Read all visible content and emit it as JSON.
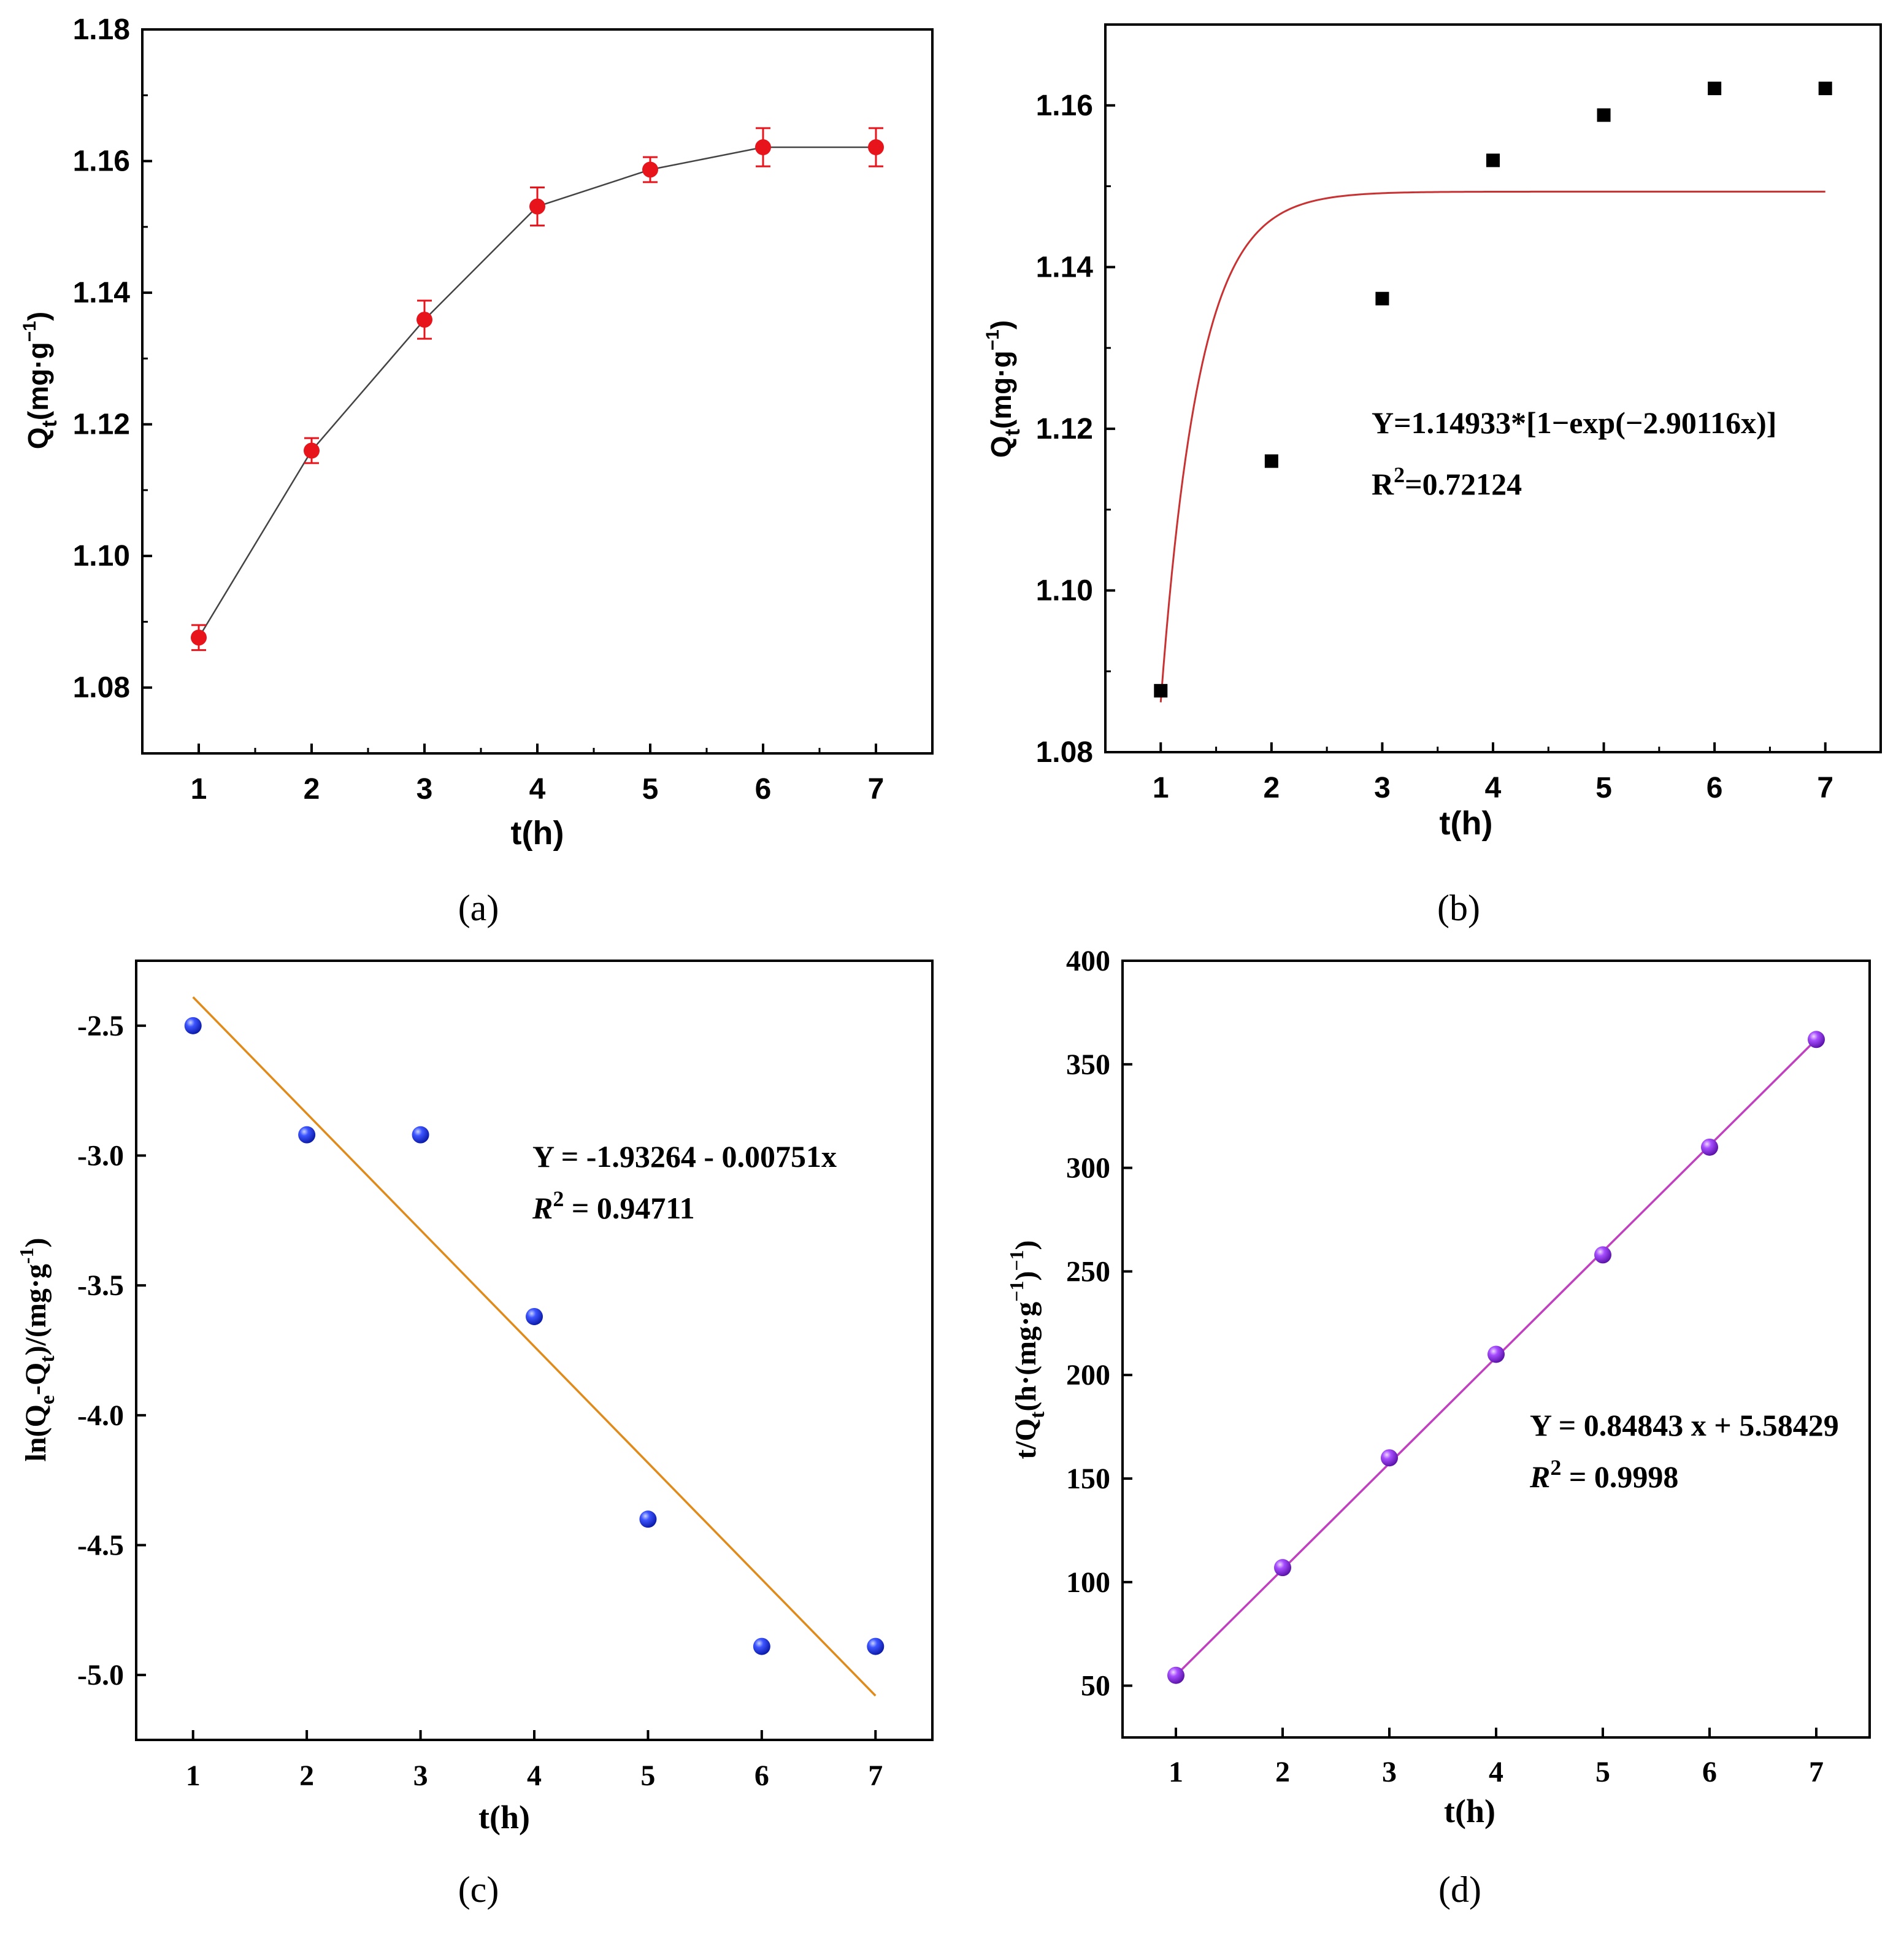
{
  "chart_data": [
    {
      "panel": "a",
      "type": "line",
      "caption": "(a)",
      "xlabel": "t(h)",
      "ylabel_main": "Q",
      "ylabel_sub": "t",
      "ylabel_unit": "(mg·g",
      "ylabel_sup": "−1",
      "ylabel_close": ")",
      "xlim": [
        0.5,
        7.5
      ],
      "ylim": [
        1.07,
        1.18
      ],
      "x_ticks": [
        1,
        2,
        3,
        4,
        5,
        6,
        7
      ],
      "x_tick_labels": [
        "1",
        "2",
        "3",
        "4",
        "5",
        "6",
        "7"
      ],
      "y_ticks": [
        1.08,
        1.1,
        1.12,
        1.14,
        1.16,
        1.18
      ],
      "y_tick_labels": [
        "1.08",
        "1.10",
        "1.12",
        "1.14",
        "1.16",
        "1.18"
      ],
      "series": [
        {
          "name": "Qt",
          "color": "#e8141b",
          "x": [
            1,
            2,
            3,
            4,
            5,
            6,
            7
          ],
          "y": [
            1.0876,
            1.116,
            1.1359,
            1.1531,
            1.1587,
            1.1621,
            1.1621
          ],
          "err": [
            0.0019,
            0.0019,
            0.0029,
            0.0029,
            0.0019,
            0.0029,
            0.0029
          ]
        }
      ]
    },
    {
      "panel": "b",
      "type": "scatter",
      "caption": "(b)",
      "xlabel": "t(h)",
      "ylabel_main": "Q",
      "ylabel_sub": "t",
      "ylabel_unit": "(mg·g",
      "ylabel_sup": "−1",
      "ylabel_close": ")",
      "xlim": [
        0.5,
        7.5
      ],
      "ylim": [
        1.08,
        1.17
      ],
      "x_ticks": [
        1,
        2,
        3,
        4,
        5,
        6,
        7
      ],
      "x_tick_labels": [
        "1",
        "2",
        "3",
        "4",
        "5",
        "6",
        "7"
      ],
      "y_ticks": [
        1.08,
        1.1,
        1.12,
        1.14,
        1.16
      ],
      "y_tick_labels": [
        "1.08",
        "1.10",
        "1.12",
        "1.14",
        "1.16"
      ],
      "series": [
        {
          "name": "Qt",
          "color": "#000000",
          "x": [
            1,
            2,
            3,
            4,
            5,
            6,
            7
          ],
          "y": [
            1.0876,
            1.116,
            1.1361,
            1.1532,
            1.1588,
            1.1621,
            1.1621
          ]
        }
      ],
      "fit": {
        "kind": "pfo",
        "qe": 1.14933,
        "k": 2.90116,
        "x_range": [
          1,
          7
        ],
        "color": "#c83232"
      },
      "equation": "Y=1.14933*[1−exp(−2.90116x)]",
      "r2_label": "R",
      "r2_sup": "2",
      "r2_value": "=0.72124"
    },
    {
      "panel": "c",
      "type": "scatter",
      "caption": "(c)",
      "xlabel": "t(h)",
      "ylabel_text": "ln(Q",
      "ylabel_sub1": "e",
      "ylabel_mid": "-Q",
      "ylabel_sub2": "t",
      "ylabel_unit": ")/(mg·g",
      "ylabel_sup": "-1",
      "ylabel_close": ")",
      "xlim": [
        0.5,
        7.5
      ],
      "ylim": [
        -5.25,
        -2.25
      ],
      "x_ticks": [
        1,
        2,
        3,
        4,
        5,
        6,
        7
      ],
      "x_tick_labels": [
        "1",
        "2",
        "3",
        "4",
        "5",
        "6",
        "7"
      ],
      "y_ticks": [
        -2.5,
        -3.0,
        -3.5,
        -4.0,
        -4.5,
        -5.0
      ],
      "y_tick_labels": [
        "-2.5",
        "-3.0",
        "-3.5",
        "-4.0",
        "-4.5",
        "-5.0"
      ],
      "series": [
        {
          "name": "ln(Qe-Qt)",
          "color": "#1f2fd6",
          "x": [
            1,
            2,
            3,
            4,
            5,
            6,
            7
          ],
          "y": [
            -2.5,
            -2.92,
            -2.92,
            -3.62,
            -4.4,
            -4.89,
            -4.89
          ]
        }
      ],
      "fit": {
        "kind": "line",
        "x0": 1,
        "y0": -2.39,
        "x1": 7,
        "y1": -5.08,
        "color": "#e08a1a"
      },
      "equation": "Y = -1.93264 - 0.00751x",
      "r2_label": "R",
      "r2_sup": "2",
      "r2_value": " = 0.94711"
    },
    {
      "panel": "d",
      "type": "scatter",
      "caption": "(d)",
      "xlabel": "t(h)",
      "ylabel_text": "t/Q",
      "ylabel_sub1": "t",
      "ylabel_unit": "(h·(mg·g",
      "ylabel_sup": "−1",
      "ylabel_close": ")",
      "ylabel_sup2": "−1",
      "ylabel_close2": ")",
      "xlim": [
        0.5,
        7.5
      ],
      "ylim": [
        25,
        400
      ],
      "x_ticks": [
        1,
        2,
        3,
        4,
        5,
        6,
        7
      ],
      "x_tick_labels": [
        "1",
        "2",
        "3",
        "4",
        "5",
        "6",
        "7"
      ],
      "y_ticks": [
        50,
        100,
        150,
        200,
        250,
        300,
        350,
        400
      ],
      "y_tick_labels": [
        "50",
        "100",
        "150",
        "200",
        "250",
        "300",
        "350",
        "400"
      ],
      "series": [
        {
          "name": "t/Qt",
          "color": "#8a2be2",
          "x": [
            1,
            2,
            3,
            4,
            5,
            6,
            7
          ],
          "y": [
            55,
            107,
            160,
            210,
            258,
            310,
            362
          ]
        }
      ],
      "fit": {
        "kind": "line",
        "x0": 1,
        "y0": 55,
        "x1": 7,
        "y1": 362,
        "color": "#c040c0"
      },
      "equation": "Y = 0.84843 x + 5.58429",
      "r2_label": "R",
      "r2_sup": "2",
      "r2_value": " = 0.9998"
    }
  ]
}
